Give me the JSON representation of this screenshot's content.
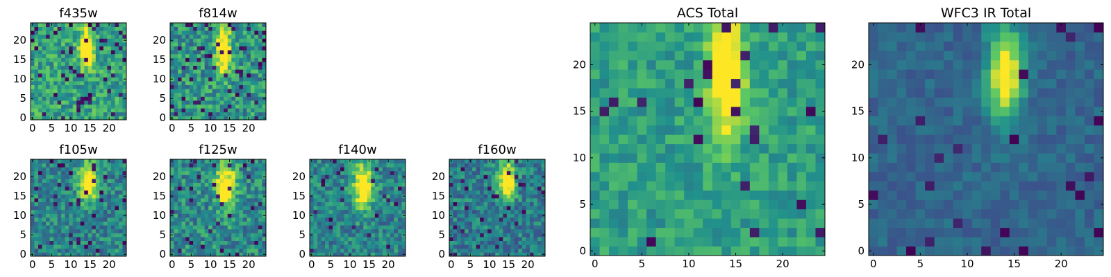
{
  "colormap": "viridis",
  "colors": [
    "#440154",
    "#3b528b",
    "#21918c",
    "#5ec962",
    "#fde725"
  ],
  "chart_data": [
    {
      "type": "heatmap",
      "title": "f435w",
      "grid_size": 25,
      "xlim": [
        0,
        24
      ],
      "ylim": [
        0,
        24
      ],
      "xticks": [
        0,
        5,
        10,
        15,
        20
      ],
      "yticks": [
        0,
        5,
        10,
        15,
        20
      ],
      "peak": {
        "x": 14,
        "y": 18,
        "sx": 1.2,
        "sy": 3.5
      },
      "background": 0.58,
      "noise": 0.2,
      "dark_fraction": 0.08
    },
    {
      "type": "heatmap",
      "title": "f814w",
      "grid_size": 25,
      "xlim": [
        0,
        24
      ],
      "ylim": [
        0,
        24
      ],
      "xticks": [
        0,
        5,
        10,
        15,
        20
      ],
      "yticks": [
        0,
        5,
        10,
        15,
        20
      ],
      "peak": {
        "x": 13.5,
        "y": 17,
        "sx": 1.3,
        "sy": 4.5
      },
      "background": 0.52,
      "noise": 0.22,
      "dark_fraction": 0.08
    },
    {
      "type": "heatmap",
      "title": "f105w",
      "grid_size": 25,
      "xlim": [
        0,
        24
      ],
      "ylim": [
        0,
        24
      ],
      "xticks": [
        0,
        5,
        10,
        15,
        20
      ],
      "yticks": [
        0,
        5,
        10,
        15,
        20
      ],
      "peak": {
        "x": 14.5,
        "y": 18.5,
        "sx": 1.8,
        "sy": 3.5
      },
      "background": 0.45,
      "noise": 0.18,
      "dark_fraction": 0.05
    },
    {
      "type": "heatmap",
      "title": "f125w",
      "grid_size": 25,
      "xlim": [
        0,
        24
      ],
      "ylim": [
        0,
        24
      ],
      "xticks": [
        0,
        5,
        10,
        15,
        20
      ],
      "yticks": [
        0,
        5,
        10,
        15,
        20
      ],
      "peak": {
        "x": 14,
        "y": 17.5,
        "sx": 1.8,
        "sy": 4.0
      },
      "background": 0.48,
      "noise": 0.2,
      "dark_fraction": 0.05
    },
    {
      "type": "heatmap",
      "title": "f140w",
      "grid_size": 25,
      "xlim": [
        0,
        24
      ],
      "ylim": [
        0,
        24
      ],
      "xticks": [
        0,
        5,
        10,
        15,
        20
      ],
      "yticks": [
        0,
        5,
        10,
        15,
        20
      ],
      "peak": {
        "x": 13.5,
        "y": 17.5,
        "sx": 1.8,
        "sy": 4.0
      },
      "background": 0.45,
      "noise": 0.18,
      "dark_fraction": 0.04
    },
    {
      "type": "heatmap",
      "title": "f160w",
      "grid_size": 25,
      "xlim": [
        0,
        24
      ],
      "ylim": [
        0,
        24
      ],
      "xticks": [
        0,
        5,
        10,
        15,
        20
      ],
      "yticks": [
        0,
        5,
        10,
        15,
        20
      ],
      "peak": {
        "x": 14.5,
        "y": 19,
        "sx": 1.6,
        "sy": 3.5
      },
      "background": 0.42,
      "noise": 0.18,
      "dark_fraction": 0.05
    },
    {
      "type": "heatmap",
      "title": "ACS Total",
      "grid_size": 25,
      "xlim": [
        0,
        24
      ],
      "ylim": [
        0,
        24
      ],
      "xticks": [
        0,
        5,
        10,
        15,
        20
      ],
      "yticks": [
        0,
        5,
        10,
        15,
        20
      ],
      "peak": {
        "x": 14,
        "y": 19,
        "sx": 1.3,
        "sy": 4.5
      },
      "background": 0.56,
      "noise": 0.13,
      "dark_fraction": 0.03
    },
    {
      "type": "heatmap",
      "title": "WFC3 IR Total",
      "grid_size": 25,
      "xlim": [
        0,
        24
      ],
      "ylim": [
        0,
        24
      ],
      "xticks": [
        0,
        5,
        10,
        15,
        20
      ],
      "yticks": [
        0,
        5,
        10,
        15,
        20
      ],
      "peak": {
        "x": 14,
        "y": 19,
        "sx": 1.3,
        "sy": 3.5
      },
      "background": 0.33,
      "noise": 0.08,
      "dark_fraction": 0.05
    }
  ]
}
